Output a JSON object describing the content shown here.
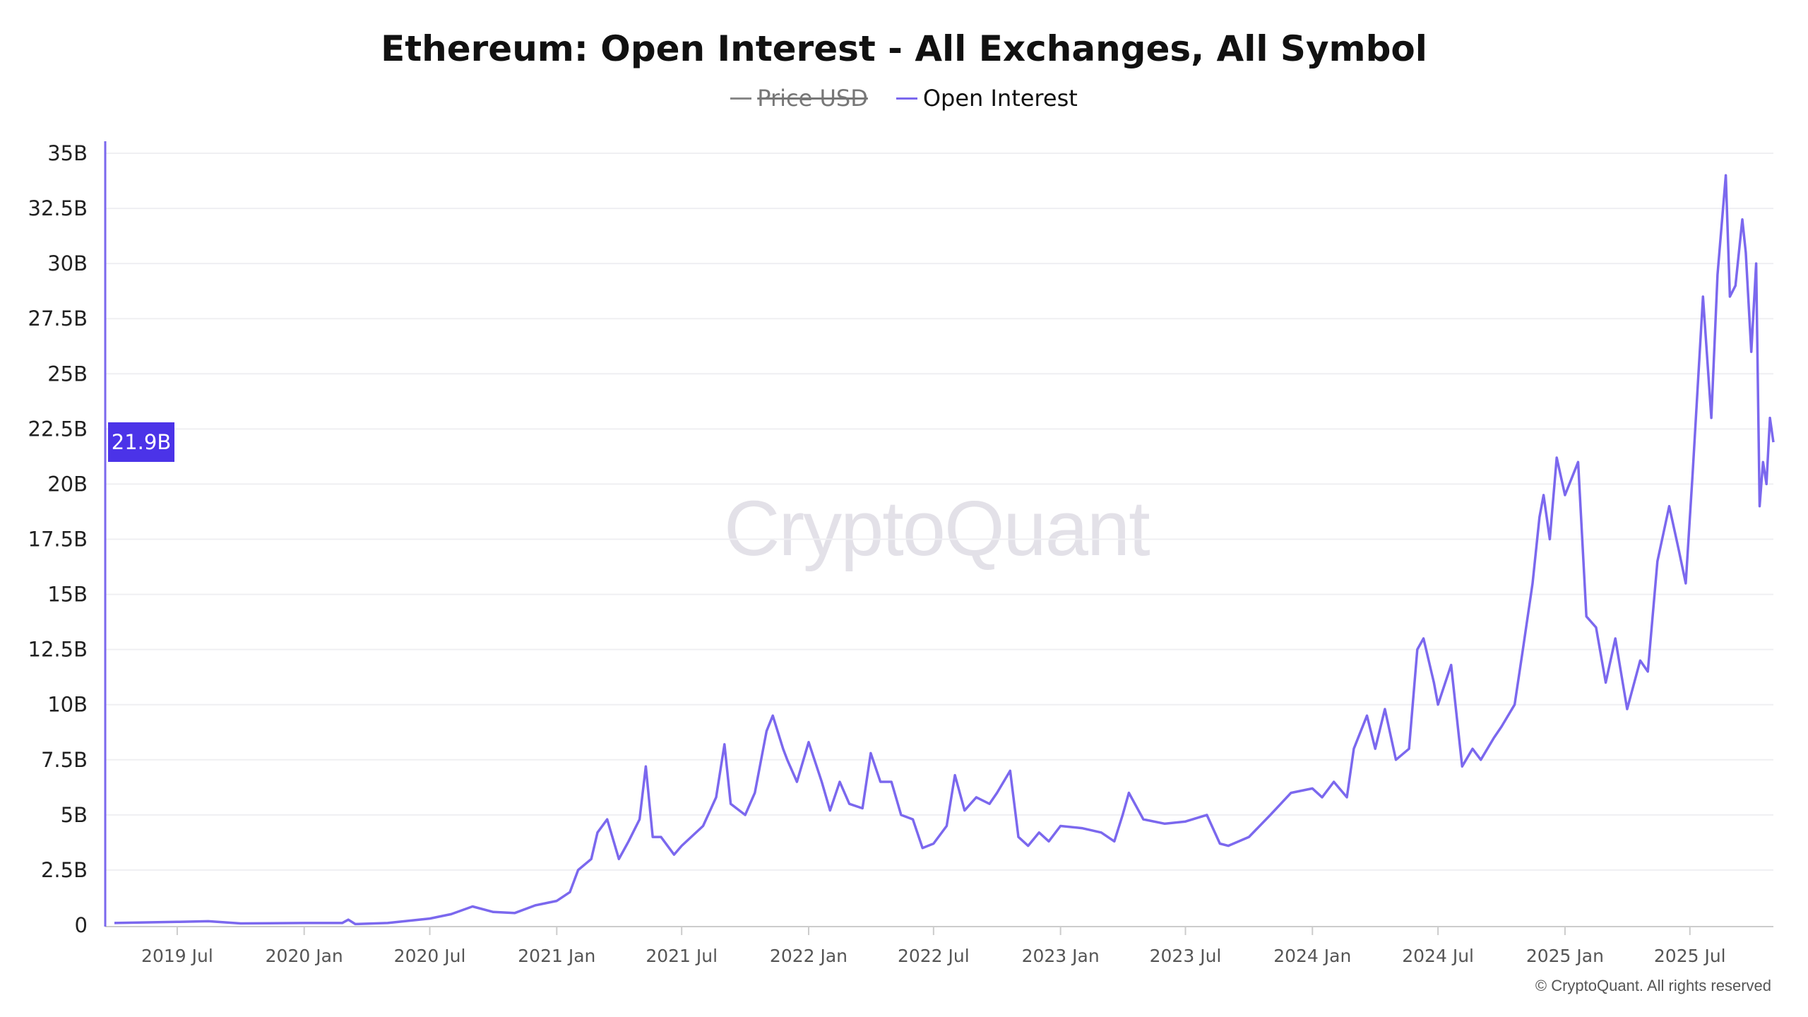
{
  "chart_data": {
    "type": "line",
    "title": "Ethereum: Open Interest - All Exchanges, All Symbol",
    "legend": [
      {
        "name": "Price USD",
        "color": "#888888",
        "hidden": true
      },
      {
        "name": "Open Interest",
        "color": "#7b68ee",
        "hidden": false
      }
    ],
    "legend_placement": "top-center",
    "xlim": [
      "2019-04-01",
      "2025-10-30"
    ],
    "x_ticks": [
      {
        "date": "2019-07-01",
        "label": "2019 Jul"
      },
      {
        "date": "2020-01-01",
        "label": "2020 Jan"
      },
      {
        "date": "2020-07-01",
        "label": "2020 Jul"
      },
      {
        "date": "2021-01-01",
        "label": "2021 Jan"
      },
      {
        "date": "2021-07-01",
        "label": "2021 Jul"
      },
      {
        "date": "2022-01-01",
        "label": "2022 Jan"
      },
      {
        "date": "2022-07-01",
        "label": "2022 Jul"
      },
      {
        "date": "2023-01-01",
        "label": "2023 Jan"
      },
      {
        "date": "2023-07-01",
        "label": "2023 Jul"
      },
      {
        "date": "2024-01-01",
        "label": "2024 Jan"
      },
      {
        "date": "2024-07-01",
        "label": "2024 Jul"
      },
      {
        "date": "2025-01-01",
        "label": "2025 Jan"
      },
      {
        "date": "2025-07-01",
        "label": "2025 Jul"
      }
    ],
    "ylim": [
      0,
      35
    ],
    "y_unit": "B",
    "y_ticks": [
      {
        "v": 0,
        "label": "0"
      },
      {
        "v": 2.5,
        "label": "2.5B"
      },
      {
        "v": 5,
        "label": "5B"
      },
      {
        "v": 7.5,
        "label": "7.5B"
      },
      {
        "v": 10,
        "label": "10B"
      },
      {
        "v": 12.5,
        "label": "12.5B"
      },
      {
        "v": 15,
        "label": "15B"
      },
      {
        "v": 17.5,
        "label": "17.5B"
      },
      {
        "v": 20,
        "label": "20B"
      },
      {
        "v": 22.5,
        "label": "22.5B"
      },
      {
        "v": 25,
        "label": "25B"
      },
      {
        "v": 27.5,
        "label": "27.5B"
      },
      {
        "v": 30,
        "label": "30B"
      },
      {
        "v": 32.5,
        "label": "32.5B"
      },
      {
        "v": 35,
        "label": "35B"
      }
    ],
    "grid": true,
    "current_value": {
      "v": 21.9,
      "label": "21.9B"
    },
    "series": [
      {
        "name": "Open Interest",
        "color": "#7b68ee",
        "points": [
          [
            "2019-04-01",
            0.1
          ],
          [
            "2019-07-01",
            0.15
          ],
          [
            "2019-08-15",
            0.18
          ],
          [
            "2019-10-01",
            0.08
          ],
          [
            "2020-01-01",
            0.1
          ],
          [
            "2020-02-25",
            0.1
          ],
          [
            "2020-03-05",
            0.25
          ],
          [
            "2020-03-15",
            0.05
          ],
          [
            "2020-05-01",
            0.1
          ],
          [
            "2020-07-01",
            0.3
          ],
          [
            "2020-08-01",
            0.5
          ],
          [
            "2020-09-01",
            0.85
          ],
          [
            "2020-10-01",
            0.6
          ],
          [
            "2020-11-01",
            0.55
          ],
          [
            "2020-12-01",
            0.9
          ],
          [
            "2021-01-01",
            1.1
          ],
          [
            "2021-01-20",
            1.5
          ],
          [
            "2021-02-01",
            2.5
          ],
          [
            "2021-02-20",
            3.0
          ],
          [
            "2021-03-01",
            4.2
          ],
          [
            "2021-03-15",
            4.8
          ],
          [
            "2021-04-01",
            3.0
          ],
          [
            "2021-04-15",
            3.8
          ],
          [
            "2021-05-01",
            4.8
          ],
          [
            "2021-05-10",
            7.2
          ],
          [
            "2021-05-20",
            4.0
          ],
          [
            "2021-06-01",
            4.0
          ],
          [
            "2021-06-20",
            3.2
          ],
          [
            "2021-07-01",
            3.6
          ],
          [
            "2021-08-01",
            4.5
          ],
          [
            "2021-08-20",
            5.8
          ],
          [
            "2021-09-01",
            8.2
          ],
          [
            "2021-09-10",
            5.5
          ],
          [
            "2021-10-01",
            5.0
          ],
          [
            "2021-10-15",
            6.0
          ],
          [
            "2021-11-01",
            8.8
          ],
          [
            "2021-11-10",
            9.5
          ],
          [
            "2021-11-25",
            8.0
          ],
          [
            "2021-12-01",
            7.5
          ],
          [
            "2021-12-15",
            6.5
          ],
          [
            "2022-01-01",
            8.3
          ],
          [
            "2022-01-20",
            6.5
          ],
          [
            "2022-02-01",
            5.2
          ],
          [
            "2022-02-15",
            6.5
          ],
          [
            "2022-03-01",
            5.5
          ],
          [
            "2022-03-20",
            5.3
          ],
          [
            "2022-04-01",
            7.8
          ],
          [
            "2022-04-15",
            6.5
          ],
          [
            "2022-05-01",
            6.5
          ],
          [
            "2022-05-15",
            5.0
          ],
          [
            "2022-06-01",
            4.8
          ],
          [
            "2022-06-15",
            3.5
          ],
          [
            "2022-07-01",
            3.7
          ],
          [
            "2022-07-20",
            4.5
          ],
          [
            "2022-08-01",
            6.8
          ],
          [
            "2022-08-15",
            5.2
          ],
          [
            "2022-09-01",
            5.8
          ],
          [
            "2022-09-20",
            5.5
          ],
          [
            "2022-10-01",
            6.0
          ],
          [
            "2022-10-20",
            7.0
          ],
          [
            "2022-11-01",
            4.0
          ],
          [
            "2022-11-15",
            3.6
          ],
          [
            "2022-12-01",
            4.2
          ],
          [
            "2022-12-15",
            3.8
          ],
          [
            "2023-01-01",
            4.5
          ],
          [
            "2023-02-01",
            4.4
          ],
          [
            "2023-03-01",
            4.2
          ],
          [
            "2023-03-20",
            3.8
          ],
          [
            "2023-04-01",
            5.0
          ],
          [
            "2023-04-10",
            6.0
          ],
          [
            "2023-05-01",
            4.8
          ],
          [
            "2023-06-01",
            4.6
          ],
          [
            "2023-07-01",
            4.7
          ],
          [
            "2023-08-01",
            5.0
          ],
          [
            "2023-08-20",
            3.7
          ],
          [
            "2023-09-01",
            3.6
          ],
          [
            "2023-10-01",
            4.0
          ],
          [
            "2023-11-01",
            5.0
          ],
          [
            "2023-12-01",
            6.0
          ],
          [
            "2024-01-01",
            6.2
          ],
          [
            "2024-01-15",
            5.8
          ],
          [
            "2024-02-01",
            6.5
          ],
          [
            "2024-02-20",
            5.8
          ],
          [
            "2024-03-01",
            8.0
          ],
          [
            "2024-03-20",
            9.5
          ],
          [
            "2024-04-01",
            8.0
          ],
          [
            "2024-04-15",
            9.8
          ],
          [
            "2024-05-01",
            7.5
          ],
          [
            "2024-05-20",
            8.0
          ],
          [
            "2024-06-01",
            12.5
          ],
          [
            "2024-06-10",
            13.0
          ],
          [
            "2024-06-25",
            11.0
          ],
          [
            "2024-07-01",
            10.0
          ],
          [
            "2024-07-20",
            11.8
          ],
          [
            "2024-08-05",
            7.2
          ],
          [
            "2024-08-20",
            8.0
          ],
          [
            "2024-09-01",
            7.5
          ],
          [
            "2024-09-20",
            8.5
          ],
          [
            "2024-10-01",
            9.0
          ],
          [
            "2024-10-20",
            10.0
          ],
          [
            "2024-11-01",
            12.5
          ],
          [
            "2024-11-15",
            15.5
          ],
          [
            "2024-11-25",
            18.5
          ],
          [
            "2024-12-01",
            19.5
          ],
          [
            "2024-12-10",
            17.5
          ],
          [
            "2024-12-20",
            21.2
          ],
          [
            "2025-01-01",
            19.5
          ],
          [
            "2025-01-20",
            21.0
          ],
          [
            "2025-02-01",
            14.0
          ],
          [
            "2025-02-15",
            13.5
          ],
          [
            "2025-03-01",
            11.0
          ],
          [
            "2025-03-15",
            13.0
          ],
          [
            "2025-04-01",
            9.8
          ],
          [
            "2025-04-20",
            12.0
          ],
          [
            "2025-05-01",
            11.5
          ],
          [
            "2025-05-15",
            16.5
          ],
          [
            "2025-06-01",
            19.0
          ],
          [
            "2025-06-15",
            17.0
          ],
          [
            "2025-06-25",
            15.5
          ],
          [
            "2025-07-05",
            20.5
          ],
          [
            "2025-07-20",
            28.5
          ],
          [
            "2025-08-01",
            23.0
          ],
          [
            "2025-08-10",
            29.5
          ],
          [
            "2025-08-22",
            34.0
          ],
          [
            "2025-08-28",
            28.5
          ],
          [
            "2025-09-05",
            29.0
          ],
          [
            "2025-09-15",
            32.0
          ],
          [
            "2025-09-20",
            30.5
          ],
          [
            "2025-09-28",
            26.0
          ],
          [
            "2025-10-05",
            30.0
          ],
          [
            "2025-10-10",
            19.0
          ],
          [
            "2025-10-15",
            21.0
          ],
          [
            "2025-10-20",
            20.0
          ],
          [
            "2025-10-25",
            23.0
          ],
          [
            "2025-10-30",
            21.9
          ]
        ]
      }
    ]
  },
  "watermark": "CryptoQuant",
  "copyright": "© CryptoQuant. All rights reserved"
}
